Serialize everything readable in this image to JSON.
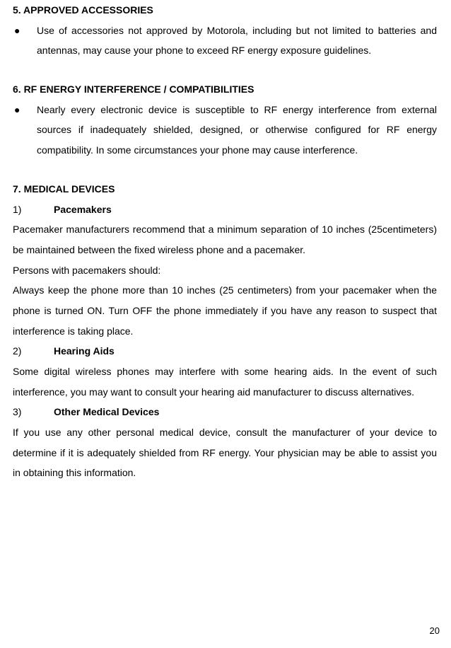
{
  "page_number": "20",
  "text_color": "#000000",
  "background_color": "#ffffff",
  "font_size": 14,
  "line_height": 2.05,
  "sections": {
    "s5": {
      "heading": "5.    APPROVED ACCESSORIES",
      "bullet_marker": "●",
      "bullet_text": "Use of accessories not approved by Motorola, including but not limited to batteries and antennas, may cause your phone to exceed RF energy exposure guidelines."
    },
    "s6": {
      "heading": "6.    RF ENERGY INTERFERENCE / COMPATIBILITIES",
      "bullet_marker": "●",
      "bullet_text": "Nearly every electronic device is susceptible to RF energy interference from external sources if inadequately shielded, designed, or otherwise configured for RF energy compatibility. In some circumstances your phone may cause interference."
    },
    "s7": {
      "heading": "7.    MEDICAL DEVICES",
      "items": {
        "i1": {
          "num": "1)",
          "title": "Pacemakers",
          "p1": "Pacemaker manufacturers recommend that a minimum separation of 10 inches (25centimeters) be maintained between the fixed wireless phone and a pacemaker.",
          "p2": "Persons with pacemakers should:",
          "p3": "Always keep the phone more than 10 inches (25 centimeters) from your pacemaker when the phone is turned ON. Turn OFF the phone immediately if you have any reason to suspect that interference is taking place."
        },
        "i2": {
          "num": "2)",
          "title": "Hearing Aids",
          "p1": "Some digital wireless phones may interfere with some hearing aids. In the event of such interference, you may want to consult your hearing aid manufacturer to discuss alternatives."
        },
        "i3": {
          "num": "3)",
          "title": "Other Medical Devices",
          "p1": "If you use any other personal medical device, consult the manufacturer of your device to determine if it is adequately shielded from RF energy. Your physician may be able to assist you in obtaining this information."
        }
      }
    }
  }
}
